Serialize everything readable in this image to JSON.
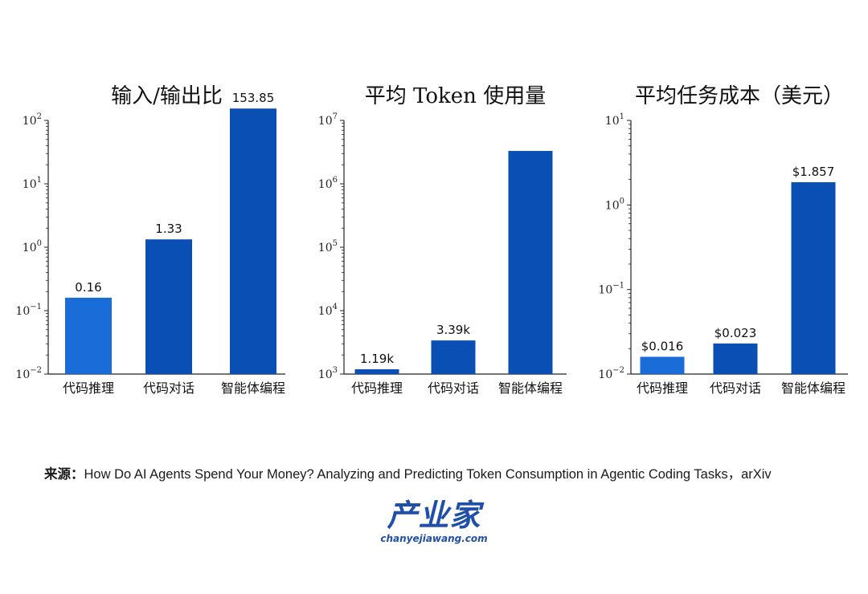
{
  "chart_data": [
    {
      "type": "bar",
      "title": "输入/输出比",
      "categories": [
        "代码推理",
        "代码对话",
        "智能体编程"
      ],
      "values": [
        0.16,
        1.33,
        153.85
      ],
      "data_labels": [
        "0.16",
        "1.33",
        "153.85"
      ],
      "yscale": "log",
      "ylim": [
        0.01,
        100
      ],
      "ytick_exponents": [
        "−2",
        "−1",
        "0",
        "1",
        "2"
      ],
      "bar_colors": [
        "#1a6dd8",
        "#0a4fb4",
        "#0a4fb4"
      ]
    },
    {
      "type": "bar",
      "title": "平均 Token 使用量",
      "categories": [
        "代码推理",
        "代码对话",
        "智能体编程"
      ],
      "values": [
        1190,
        3390,
        3300000
      ],
      "data_labels": [
        "1.19k",
        "3.39k",
        ""
      ],
      "yscale": "log",
      "ylim": [
        1000,
        10000000
      ],
      "ytick_exponents": [
        "3",
        "4",
        "5",
        "6",
        "7"
      ],
      "bar_colors": [
        "#0a4fb4",
        "#0a4fb4",
        "#0a4fb4"
      ]
    },
    {
      "type": "bar",
      "title": "平均任务成本（美元）",
      "categories": [
        "代码推理",
        "代码对话",
        "智能体编程"
      ],
      "values": [
        0.016,
        0.023,
        1.857
      ],
      "data_labels": [
        "$0.016",
        "$0.023",
        "$1.857"
      ],
      "yscale": "log",
      "ylim": [
        0.01,
        10
      ],
      "ytick_exponents": [
        "−2",
        "−1",
        "0",
        "1"
      ],
      "bar_colors": [
        "#1a6dd8",
        "#0a4fb4",
        "#0a4fb4"
      ]
    }
  ],
  "source": {
    "label": "来源：",
    "text": "How Do AI Agents Spend Your Money? Analyzing and Predicting Token Consumption in Agentic Coding Tasks，arXiv"
  },
  "logo": {
    "name": "产业家",
    "domain": "chanyejiawang.com"
  }
}
